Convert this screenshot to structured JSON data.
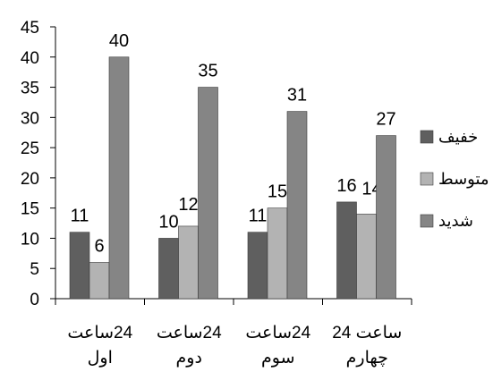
{
  "chart_data": {
    "type": "bar",
    "title": "",
    "xlabel": "",
    "ylabel": "",
    "ylim": [
      0,
      45
    ],
    "yticks": [
      0,
      5,
      10,
      15,
      20,
      25,
      30,
      35,
      40,
      45
    ],
    "grid": false,
    "legend_position": "right",
    "categories": [
      [
        "24ساعت",
        "اول"
      ],
      [
        "24ساعت",
        "دوم"
      ],
      [
        "24ساعت",
        "سوم"
      ],
      [
        "ساعت 24",
        "چهارم"
      ]
    ],
    "series": [
      {
        "name": "خفيف",
        "color": "#5f5f5f",
        "values": [
          11,
          10,
          11,
          16
        ]
      },
      {
        "name": "متوسط",
        "color": "#b3b3b3",
        "values": [
          6,
          12,
          15,
          14
        ]
      },
      {
        "name": "شديد",
        "color": "#858585",
        "values": [
          40,
          35,
          31,
          27
        ]
      }
    ]
  }
}
